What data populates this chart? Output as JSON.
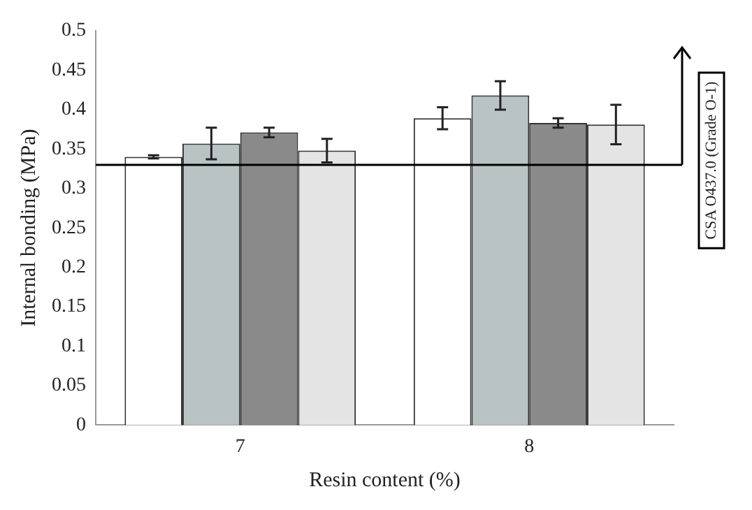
{
  "chart_data": {
    "type": "bar",
    "xlabel": "Resin content (%)",
    "ylabel": "Internal bonding (MPa)",
    "categories": [
      "7",
      "8"
    ],
    "series": [
      {
        "color": "#ffffff",
        "values": [
          0.34,
          0.389
        ],
        "errors": [
          0.002,
          0.014
        ]
      },
      {
        "color": "#b9c3c3",
        "values": [
          0.357,
          0.418
        ],
        "errors": [
          0.02,
          0.018
        ]
      },
      {
        "color": "#8a8a8a",
        "values": [
          0.371,
          0.383
        ],
        "errors": [
          0.006,
          0.006
        ]
      },
      {
        "color": "#e4e4e4",
        "values": [
          0.348,
          0.381
        ],
        "errors": [
          0.015,
          0.025
        ]
      }
    ],
    "ylim": [
      0,
      0.5
    ],
    "yticks": [
      0,
      0.05,
      0.1,
      0.15,
      0.2,
      0.25,
      0.3,
      0.35,
      0.4,
      0.45,
      0.5
    ],
    "ref_lines": [
      {
        "axis": "y",
        "value": 0.33,
        "label": "CSA O437.0 (Grade O-1)",
        "color": "#000000"
      }
    ],
    "grid": false,
    "legend": false
  }
}
